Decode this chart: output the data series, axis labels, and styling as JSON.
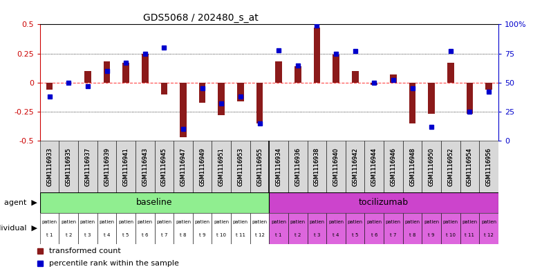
{
  "title": "GDS5068 / 202480_s_at",
  "x_labels": [
    "GSM1116933",
    "GSM1116935",
    "GSM1116937",
    "GSM1116939",
    "GSM1116941",
    "GSM1116943",
    "GSM1116945",
    "GSM1116947",
    "GSM1116949",
    "GSM1116951",
    "GSM1116953",
    "GSM1116955",
    "GSM1116934",
    "GSM1116936",
    "GSM1116938",
    "GSM1116940",
    "GSM1116942",
    "GSM1116944",
    "GSM1116946",
    "GSM1116948",
    "GSM1116950",
    "GSM1116952",
    "GSM1116954",
    "GSM1116956"
  ],
  "red_values": [
    -0.06,
    0.0,
    0.1,
    0.18,
    0.17,
    0.25,
    -0.1,
    -0.47,
    -0.17,
    -0.28,
    -0.16,
    -0.35,
    0.18,
    0.14,
    0.47,
    0.24,
    0.1,
    -0.02,
    0.07,
    -0.35,
    -0.27,
    0.17,
    -0.27,
    -0.06
  ],
  "blue_values": [
    38,
    50,
    47,
    60,
    67,
    75,
    80,
    10,
    45,
    32,
    38,
    15,
    78,
    65,
    99,
    75,
    77,
    50,
    52,
    45,
    12,
    77,
    25,
    42
  ],
  "ylim_left": [
    -0.5,
    0.5
  ],
  "ylim_right": [
    0,
    100
  ],
  "yticks_left": [
    -0.5,
    -0.25,
    0,
    0.25,
    0.5
  ],
  "yticks_right": [
    0,
    25,
    50,
    75,
    100
  ],
  "baseline_label": "baseline",
  "tocilizumab_label": "tocilizumab",
  "agent_label": "agent",
  "individual_label": "individual",
  "individual_labels_top": [
    "patien",
    "patien",
    "patien",
    "patien",
    "patien",
    "patien",
    "patien",
    "patien",
    "patien",
    "patien",
    "patien",
    "patien",
    "patien",
    "patien",
    "patien",
    "patien",
    "patien",
    "patien",
    "patien",
    "patien",
    "patien",
    "patien",
    "patien",
    "patien"
  ],
  "individual_labels_bot": [
    "t 1",
    "t 2",
    "t 3",
    "t 4",
    "t 5",
    "t 6",
    "t 7",
    "t 8",
    "t 9",
    "t 10",
    "t 11",
    "t 12",
    "t 1",
    "t 2",
    "t 3",
    "t 4",
    "t 5",
    "t 6",
    "t 7",
    "t 8",
    "t 9",
    "t 10",
    "t 11",
    "t 12"
  ],
  "bar_color": "#8B1A1A",
  "dot_color": "#0000cc",
  "baseline_color": "#90ee90",
  "tocilizumab_color": "#cc44cc",
  "individual_baseline_color": "#ffffff",
  "individual_tocilizumab_color": "#dd66dd",
  "legend_red_label": "transformed count",
  "legend_blue_label": "percentile rank within the sample",
  "n_baseline": 12,
  "n_tocilizumab": 12,
  "background_color": "#ffffff",
  "zero_line_color": "#ff4444",
  "ytick_left_color": "#cc0000",
  "ytick_right_color": "#0000cc"
}
